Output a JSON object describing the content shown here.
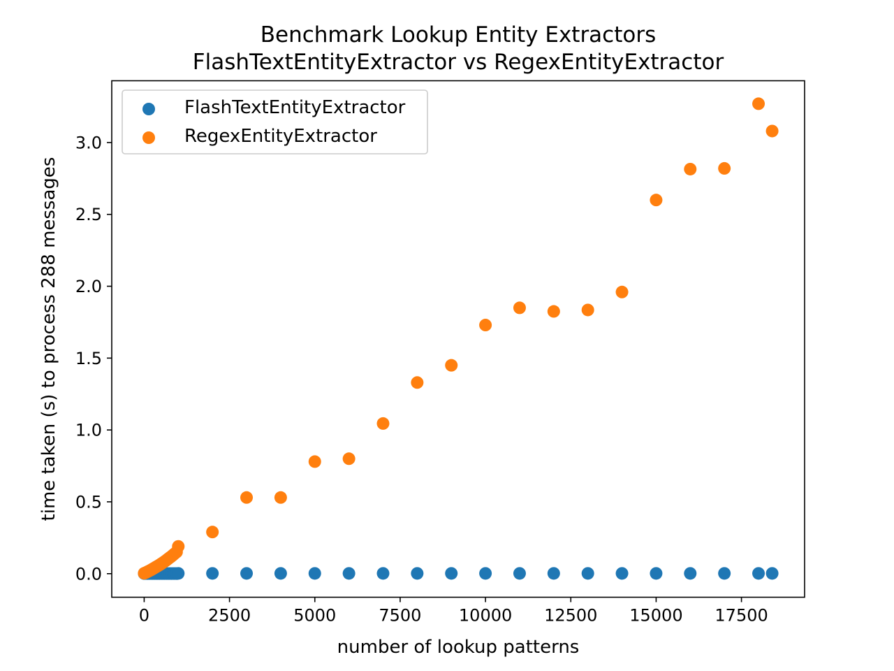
{
  "chart_data": {
    "type": "scatter",
    "title": "Benchmark Lookup Entity Extractors",
    "subtitle": "FlashTextEntityExtractor vs RegexEntityExtractor",
    "xlabel": "number of lookup patterns",
    "ylabel": "time taken (s) to process 288 messages",
    "xlim": [
      -950,
      19350
    ],
    "ylim": [
      -0.164,
      3.43
    ],
    "xticks": [
      0,
      2500,
      5000,
      7500,
      10000,
      12500,
      15000,
      17500
    ],
    "xtick_labels": [
      "0",
      "2500",
      "5000",
      "7500",
      "10000",
      "12500",
      "15000",
      "17500"
    ],
    "yticks": [
      0.0,
      0.5,
      1.0,
      1.5,
      2.0,
      2.5,
      3.0
    ],
    "ytick_labels": [
      "0.0",
      "0.5",
      "1.0",
      "1.5",
      "2.0",
      "2.5",
      "3.0"
    ],
    "grid": false,
    "legend_position": "top-left",
    "series": [
      {
        "name": "FlashTextEntityExtractor",
        "color": "#1f77b4",
        "x": [
          0,
          50,
          100,
          150,
          200,
          250,
          300,
          350,
          400,
          450,
          500,
          550,
          600,
          650,
          700,
          750,
          800,
          850,
          900,
          950,
          1000,
          2000,
          3000,
          4000,
          5000,
          6000,
          7000,
          8000,
          9000,
          10000,
          11000,
          12000,
          13000,
          14000,
          15000,
          16000,
          17000,
          18000,
          18400
        ],
        "y": [
          0.001,
          0.001,
          0.001,
          0.001,
          0.001,
          0.001,
          0.001,
          0.001,
          0.001,
          0.001,
          0.001,
          0.001,
          0.001,
          0.001,
          0.001,
          0.001,
          0.001,
          0.001,
          0.001,
          0.001,
          0.002,
          0.002,
          0.002,
          0.002,
          0.002,
          0.002,
          0.002,
          0.002,
          0.002,
          0.002,
          0.002,
          0.002,
          0.002,
          0.002,
          0.002,
          0.002,
          0.002,
          0.002,
          0.002
        ]
      },
      {
        "name": "RegexEntityExtractor",
        "color": "#ff7f0e",
        "x": [
          0,
          50,
          100,
          150,
          200,
          250,
          300,
          350,
          400,
          450,
          500,
          550,
          600,
          650,
          700,
          750,
          800,
          850,
          900,
          950,
          1000,
          2000,
          3000,
          4000,
          5000,
          6000,
          7000,
          8000,
          9000,
          10000,
          11000,
          12000,
          13000,
          14000,
          15000,
          16000,
          17000,
          18000,
          18400
        ],
        "y": [
          0.003,
          0.008,
          0.014,
          0.02,
          0.026,
          0.033,
          0.04,
          0.047,
          0.054,
          0.061,
          0.069,
          0.077,
          0.085,
          0.094,
          0.103,
          0.112,
          0.121,
          0.131,
          0.141,
          0.151,
          0.19,
          0.29,
          0.53,
          0.53,
          0.78,
          0.8,
          1.045,
          1.33,
          1.45,
          1.73,
          1.85,
          1.825,
          1.835,
          1.96,
          2.6,
          2.815,
          2.82,
          3.27,
          3.08
        ]
      }
    ]
  }
}
